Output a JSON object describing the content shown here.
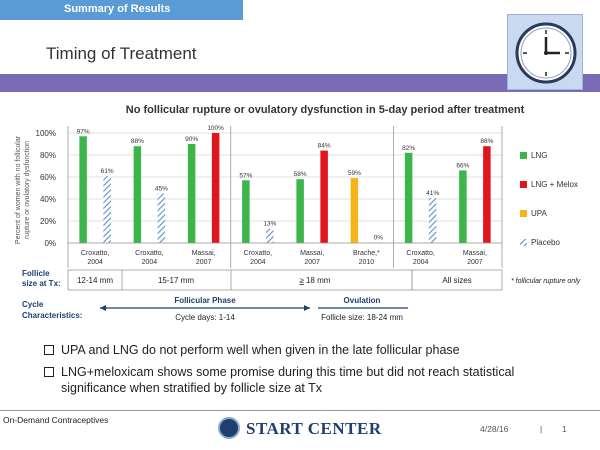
{
  "header": {
    "section": "Summary of Results",
    "title": "Timing of Treatment"
  },
  "icons": {
    "clock": "clock-icon",
    "globe": "globe-logo-icon",
    "bullet": "checkbox-bullet-icon"
  },
  "colors": {
    "lng": "#3cb54a",
    "lng_melox": "#e0151e",
    "upa": "#f5b51a",
    "placebo": "#5b8fd0",
    "accent_bar": "#7b6ab4",
    "header_bar": "#5b9bd5"
  },
  "chart_data": {
    "type": "bar",
    "title": "No follicular rupture or ovulatory dysfunction in 5-day period after treatment",
    "ylabel": "Percent of women with no follicular rupture or ovulatory dysfunction",
    "ylim": [
      0,
      100
    ],
    "yticks": [
      "0%",
      "20%",
      "40%",
      "60%",
      "80%",
      "100%"
    ],
    "groups": [
      {
        "name": "Croxatto, 2004",
        "bars": [
          {
            "series": "LNG",
            "value": 97,
            "label": "97%"
          },
          {
            "series": "Placebo",
            "value": 61,
            "label": "61%"
          }
        ]
      },
      {
        "name": "Croxatto, 2004",
        "bars": [
          {
            "series": "LNG",
            "value": 88,
            "label": "88%"
          },
          {
            "series": "Placebo",
            "value": 45,
            "label": "45%"
          }
        ]
      },
      {
        "name": "Massai, 2007",
        "bars": [
          {
            "series": "LNG",
            "value": 90,
            "label": "90%"
          },
          {
            "series": "LNG + Melox",
            "value": 100,
            "label": "100%"
          }
        ]
      },
      {
        "name": "Croxatto, 2004",
        "bars": [
          {
            "series": "LNG",
            "value": 57,
            "label": "57%"
          },
          {
            "series": "Placebo",
            "value": 13,
            "label": "13%"
          }
        ]
      },
      {
        "name": "Massai, 2007",
        "bars": [
          {
            "series": "LNG",
            "value": 58,
            "label": "58%"
          },
          {
            "series": "LNG + Melox",
            "value": 84,
            "label": "84%"
          }
        ]
      },
      {
        "name": "Brache, 2010",
        "bars": [
          {
            "series": "UPA",
            "value": 59,
            "label": "59%"
          },
          {
            "series": "Placebo",
            "value": 0,
            "label": "0%"
          }
        ]
      },
      {
        "name": "Croxatto, 2004",
        "bars": [
          {
            "series": "LNG",
            "value": 82,
            "label": "82%"
          },
          {
            "series": "Placebo",
            "value": 41,
            "label": "41%"
          }
        ]
      },
      {
        "name": "Massai, 2007",
        "bars": [
          {
            "series": "LNG",
            "value": 66,
            "label": "66%"
          },
          {
            "series": "LNG + Melox",
            "value": 88,
            "label": "88%"
          }
        ]
      }
    ],
    "group_name_lines": [
      [
        "Croxatto,",
        "2004"
      ],
      [
        "Croxatto,",
        "2004"
      ],
      [
        "Massai,",
        "2007"
      ],
      [
        "Croxatto,",
        "2004"
      ],
      [
        "Massai,",
        "2007"
      ],
      [
        "Brache,*",
        "2010"
      ],
      [
        "Croxatto,",
        "2004"
      ],
      [
        "Massai,",
        "2007"
      ]
    ],
    "legend": [
      {
        "name": "LNG",
        "pattern": "solid"
      },
      {
        "name": "LNG + Melox",
        "pattern": "solid"
      },
      {
        "name": "UPA",
        "pattern": "solid"
      },
      {
        "name": "Placebo",
        "pattern": "hatched"
      }
    ],
    "legend_placement": "right",
    "follicle_size": {
      "label": [
        "Follicle",
        "size at Tx:"
      ],
      "segments": [
        "12-14 mm",
        "15-17 mm",
        "18 mm",
        "All sizes"
      ],
      "geq_prefix": "≥"
    },
    "footnote": "* follicular rupture only",
    "cycle": {
      "label": [
        "Cycle",
        "Characteristics:"
      ],
      "follicular_phase": "Follicular Phase",
      "follicular_sub": "Cycle days: 1-14",
      "ovulation": "Ovulation",
      "ovulation_sub": "Follicle size: 18-24 mm"
    }
  },
  "bullets": [
    "UPA and LNG do not perform well when given in the late follicular phase",
    "LNG+meloxicam shows some promise during this time but did not reach statistical significance when stratified by follicle size at Tx"
  ],
  "footer": {
    "left": "On-Demand Contraceptives",
    "logo": "START CENTER",
    "date": "4/28/16",
    "separator": "|",
    "page": "1"
  }
}
